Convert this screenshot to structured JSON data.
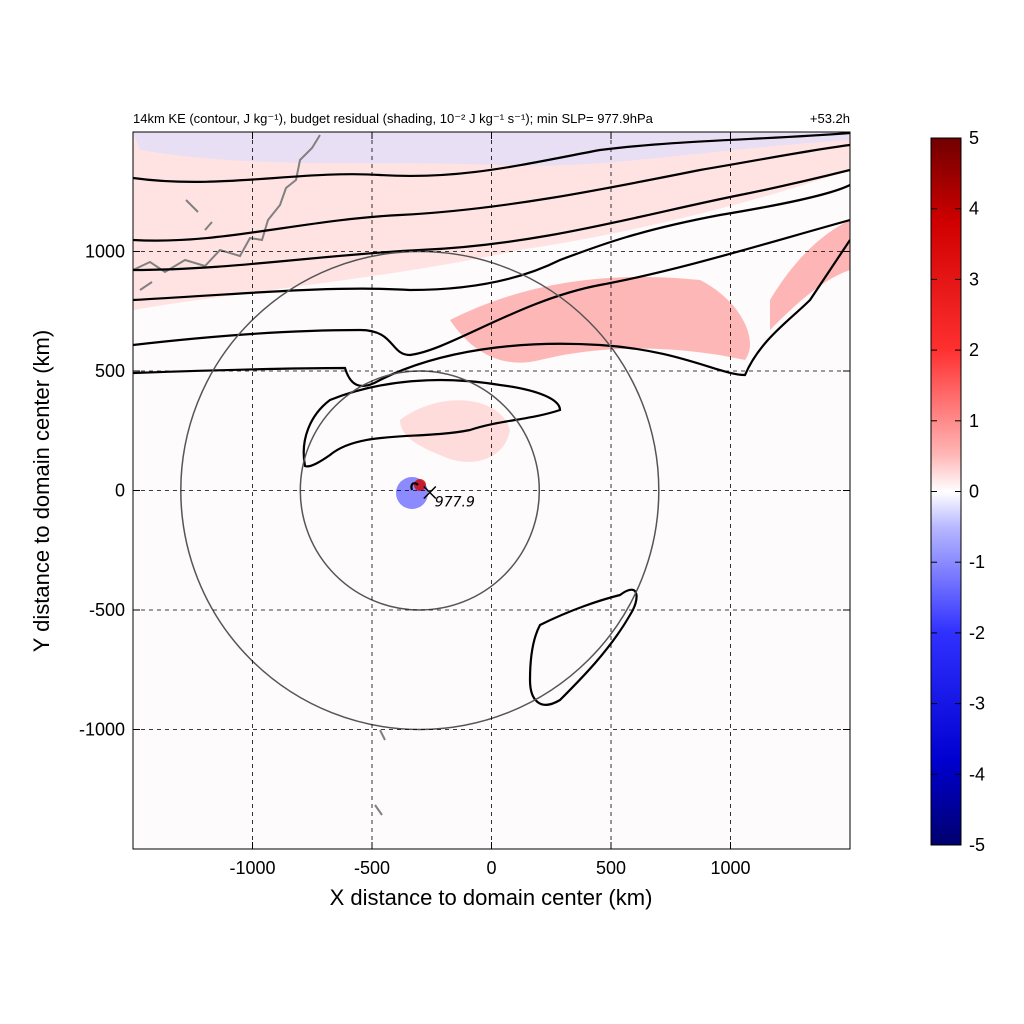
{
  "chart_data": {
    "type": "heatmap",
    "title": {
      "left": "14km KE (contour, J kg⁻¹), budget residual (shading, 10⁻² J kg⁻¹ s⁻¹); min SLP= 977.9hPa",
      "right": "+53.2h"
    },
    "xlabel": "X distance to domain center (km)",
    "ylabel": "Y distance to domain center (km)",
    "xlim": [
      -1500,
      1500
    ],
    "ylim": [
      -1500,
      1500
    ],
    "x_ticks": [
      -1000,
      -500,
      0,
      500,
      1000
    ],
    "y_ticks": [
      -1000,
      -500,
      0,
      500,
      1000
    ],
    "x_tick_labels": [
      "-1000",
      "-500",
      "0",
      "500",
      "1000"
    ],
    "y_tick_labels": [
      "-1000",
      "-500",
      "0",
      "500",
      "1000"
    ],
    "grid": true,
    "colorbar": {
      "min": -5,
      "max": 5,
      "ticks": [
        5,
        4,
        3,
        2,
        1,
        0,
        -1,
        -2,
        -3,
        -4,
        -5
      ],
      "tick_labels": [
        "5",
        "4",
        "3",
        "2",
        "1",
        "0",
        "-1",
        "-2",
        "-3",
        "-4",
        "-5"
      ],
      "colormap": "blue-white-red",
      "colors": {
        "low": "#08006e",
        "mid_low": "#2020ff",
        "zero": "#ffffff",
        "mid_high": "#ff2020",
        "high": "#7a0000"
      }
    },
    "storm_center": {
      "x": -300,
      "y": 0,
      "min_slp_label": "977.9",
      "marker": "x"
    },
    "range_rings_km": [
      500,
      1000
    ],
    "ring_center": {
      "x": -300,
      "y": 0
    },
    "contour_color": "#000000",
    "coastline_color": "#808080"
  }
}
